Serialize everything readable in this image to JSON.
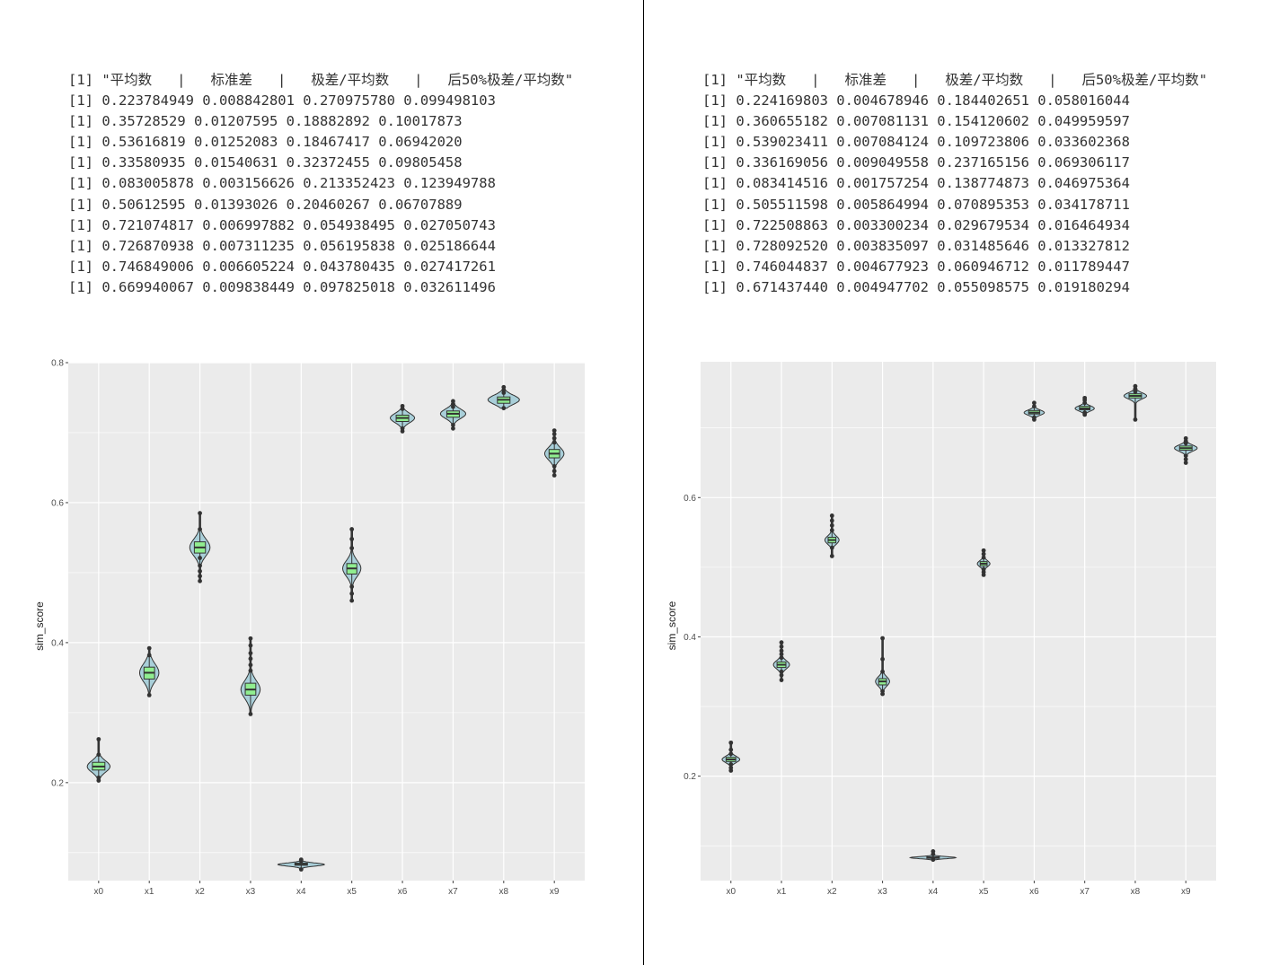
{
  "panels": [
    {
      "console_lines": [
        "[1] \"平均数   |   标准差   |   极差/平均数   |   后50%极差/平均数\"",
        "[1] 0.223784949 0.008842801 0.270975780 0.099498103",
        "[1] 0.35728529 0.01207595 0.18882892 0.10017873",
        "[1] 0.53616819 0.01252083 0.18467417 0.06942020",
        "[1] 0.33580935 0.01540631 0.32372455 0.09805458",
        "[1] 0.083005878 0.003156626 0.213352423 0.123949788",
        "[1] 0.50612595 0.01393026 0.20460267 0.06707889",
        "[1] 0.721074817 0.006997882 0.054938495 0.027050743",
        "[1] 0.726870938 0.007311235 0.056195838 0.025186644",
        "[1] 0.746849006 0.006605224 0.043780435 0.027417261",
        "[1] 0.669940067 0.009838449 0.097825018 0.032611496"
      ]
    },
    {
      "console_lines": [
        "[1] \"平均数   |   标准差   |   极差/平均数   |   后50%极差/平均数\"",
        "[1] 0.224169803 0.004678946 0.184402651 0.058016044",
        "[1] 0.360655182 0.007081131 0.154120602 0.049959597",
        "[1] 0.539023411 0.007084124 0.109723806 0.033602368",
        "[1] 0.336169056 0.009049558 0.237165156 0.069306117",
        "[1] 0.083414516 0.001757254 0.138774873 0.046975364",
        "[1] 0.505511598 0.005864994 0.070895353 0.034178711",
        "[1] 0.722508863 0.003300234 0.029679534 0.016464934",
        "[1] 0.728092520 0.003835097 0.031485646 0.013327812",
        "[1] 0.746044837 0.004677923 0.060946712 0.011789447",
        "[1] 0.671437440 0.004947702 0.055098575 0.019180294"
      ]
    }
  ],
  "chart_data": [
    {
      "type": "violin",
      "ylabel": "sim_score",
      "xlabel": "",
      "title": "",
      "categories": [
        "x0",
        "x1",
        "x2",
        "x3",
        "x4",
        "x5",
        "x6",
        "x7",
        "x8",
        "x9"
      ],
      "yticks": [
        "0.2",
        "0.4",
        "0.6",
        "0.8"
      ],
      "ylim": [
        0.06,
        0.8
      ],
      "grid": true,
      "colors": {
        "panel_bg": "#ebebeb",
        "grid": "#ffffff",
        "violin_fill": "#a9cfd9",
        "box_fill": "#90ee90",
        "outline": "#333333"
      },
      "series": [
        {
          "category": "x0",
          "median": 0.223,
          "q1": 0.218,
          "q3": 0.229,
          "min": 0.203,
          "max": 0.262,
          "halfwidth": 0.45,
          "points": [
            0.203,
            0.207,
            0.24,
            0.262
          ]
        },
        {
          "category": "x1",
          "median": 0.357,
          "q1": 0.348,
          "q3": 0.365,
          "min": 0.325,
          "max": 0.392,
          "halfwidth": 0.38,
          "points": [
            0.325,
            0.382,
            0.392
          ]
        },
        {
          "category": "x2",
          "median": 0.536,
          "q1": 0.528,
          "q3": 0.544,
          "min": 0.488,
          "max": 0.585,
          "halfwidth": 0.4,
          "points": [
            0.488,
            0.495,
            0.502,
            0.51,
            0.521,
            0.562,
            0.585
          ]
        },
        {
          "category": "x3",
          "median": 0.333,
          "q1": 0.325,
          "q3": 0.342,
          "min": 0.298,
          "max": 0.406,
          "halfwidth": 0.38,
          "points": [
            0.298,
            0.36,
            0.368,
            0.377,
            0.385,
            0.396,
            0.406
          ]
        },
        {
          "category": "x4",
          "median": 0.083,
          "q1": 0.082,
          "q3": 0.085,
          "min": 0.076,
          "max": 0.09,
          "halfwidth": 0.92,
          "points": [
            0.076,
            0.088,
            0.09
          ]
        },
        {
          "category": "x5",
          "median": 0.506,
          "q1": 0.498,
          "q3": 0.513,
          "min": 0.46,
          "max": 0.562,
          "halfwidth": 0.36,
          "points": [
            0.46,
            0.47,
            0.48,
            0.535,
            0.548,
            0.562
          ]
        },
        {
          "category": "x6",
          "median": 0.721,
          "q1": 0.716,
          "q3": 0.725,
          "min": 0.702,
          "max": 0.738,
          "halfwidth": 0.48,
          "points": [
            0.702,
            0.706,
            0.734,
            0.738
          ]
        },
        {
          "category": "x7",
          "median": 0.727,
          "q1": 0.722,
          "q3": 0.731,
          "min": 0.706,
          "max": 0.745,
          "halfwidth": 0.5,
          "points": [
            0.706,
            0.711,
            0.737,
            0.741,
            0.745
          ]
        },
        {
          "category": "x8",
          "median": 0.747,
          "q1": 0.742,
          "q3": 0.751,
          "min": 0.735,
          "max": 0.765,
          "halfwidth": 0.62,
          "points": [
            0.735,
            0.757,
            0.761,
            0.765
          ]
        },
        {
          "category": "x9",
          "median": 0.67,
          "q1": 0.664,
          "q3": 0.676,
          "min": 0.639,
          "max": 0.703,
          "halfwidth": 0.38,
          "points": [
            0.639,
            0.645,
            0.652,
            0.686,
            0.692,
            0.698,
            0.703
          ]
        }
      ]
    },
    {
      "type": "violin",
      "ylabel": "sim_score",
      "xlabel": "",
      "title": "",
      "categories": [
        "x0",
        "x1",
        "x2",
        "x3",
        "x4",
        "x5",
        "x6",
        "x7",
        "x8",
        "x9"
      ],
      "yticks": [
        "0.2",
        "0.4",
        "0.6"
      ],
      "ylim": [
        0.05,
        0.795
      ],
      "grid": true,
      "colors": {
        "panel_bg": "#ebebeb",
        "grid": "#ffffff",
        "violin_fill": "#a9cfd9",
        "box_fill": "#90ee90",
        "outline": "#333333"
      },
      "series": [
        {
          "category": "x0",
          "median": 0.224,
          "q1": 0.221,
          "q3": 0.227,
          "min": 0.208,
          "max": 0.248,
          "halfwidth": 0.35,
          "points": [
            0.208,
            0.212,
            0.217,
            0.232,
            0.238,
            0.248
          ]
        },
        {
          "category": "x1",
          "median": 0.36,
          "q1": 0.356,
          "q3": 0.364,
          "min": 0.338,
          "max": 0.392,
          "halfwidth": 0.32,
          "points": [
            0.338,
            0.345,
            0.35,
            0.37,
            0.375,
            0.38,
            0.386,
            0.392
          ]
        },
        {
          "category": "x2",
          "median": 0.539,
          "q1": 0.535,
          "q3": 0.543,
          "min": 0.516,
          "max": 0.574,
          "halfwidth": 0.28,
          "points": [
            0.516,
            0.528,
            0.553,
            0.56,
            0.567,
            0.574
          ]
        },
        {
          "category": "x3",
          "median": 0.336,
          "q1": 0.331,
          "q3": 0.34,
          "min": 0.318,
          "max": 0.398,
          "halfwidth": 0.28,
          "points": [
            0.318,
            0.322,
            0.35,
            0.368,
            0.398
          ]
        },
        {
          "category": "x4",
          "median": 0.083,
          "q1": 0.082,
          "q3": 0.084,
          "min": 0.08,
          "max": 0.092,
          "halfwidth": 0.9,
          "points": [
            0.08,
            0.088,
            0.092
          ]
        },
        {
          "category": "x5",
          "median": 0.505,
          "q1": 0.502,
          "q3": 0.508,
          "min": 0.489,
          "max": 0.524,
          "halfwidth": 0.25,
          "points": [
            0.489,
            0.493,
            0.497,
            0.514,
            0.519,
            0.524
          ]
        },
        {
          "category": "x6",
          "median": 0.722,
          "q1": 0.72,
          "q3": 0.725,
          "min": 0.712,
          "max": 0.736,
          "halfwidth": 0.4,
          "points": [
            0.712,
            0.715,
            0.731,
            0.736
          ]
        },
        {
          "category": "x7",
          "median": 0.728,
          "q1": 0.726,
          "q3": 0.731,
          "min": 0.719,
          "max": 0.743,
          "halfwidth": 0.38,
          "points": [
            0.719,
            0.722,
            0.736,
            0.74,
            0.743
          ]
        },
        {
          "category": "x8",
          "median": 0.746,
          "q1": 0.743,
          "q3": 0.749,
          "min": 0.712,
          "max": 0.76,
          "halfwidth": 0.45,
          "points": [
            0.712,
            0.752,
            0.756,
            0.76
          ]
        },
        {
          "category": "x9",
          "median": 0.671,
          "q1": 0.668,
          "q3": 0.674,
          "min": 0.65,
          "max": 0.685,
          "halfwidth": 0.45,
          "points": [
            0.65,
            0.655,
            0.66,
            0.678,
            0.681,
            0.685
          ]
        }
      ]
    }
  ]
}
